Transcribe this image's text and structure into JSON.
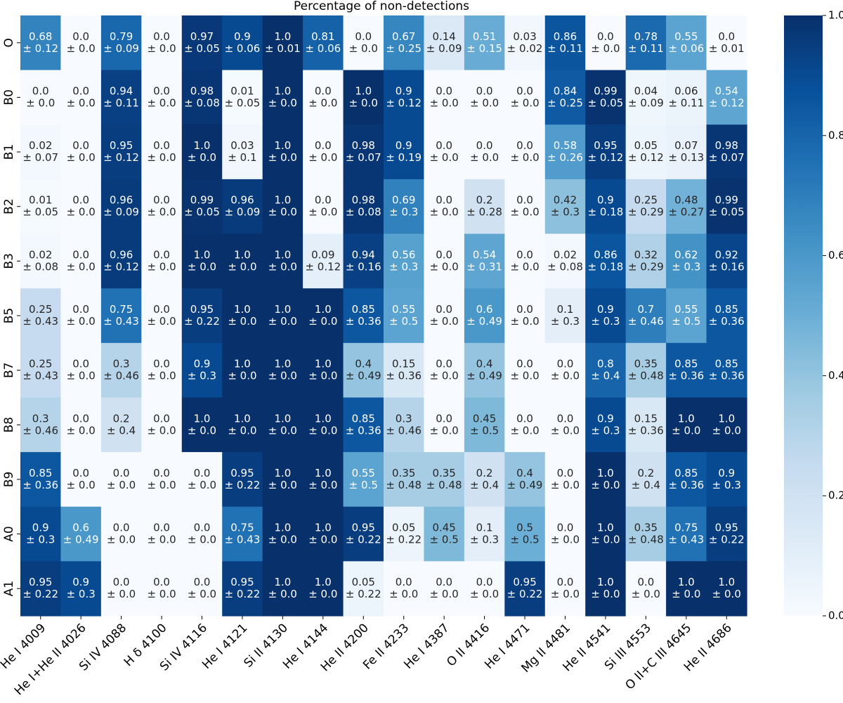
{
  "chart_data": {
    "type": "heatmap",
    "title": "Percentage of non-detections",
    "colormap": "Blues",
    "vmin": 0.0,
    "vmax": 1.0,
    "x_labels": [
      "He I 4009",
      "He I+He II 4026",
      "Si IV 4088",
      "H δ 4100",
      "Si IV 4116",
      "He I 4121",
      "Si II 4130",
      "He I 4144",
      "He II 4200",
      "Fe II 4233",
      "He I 4387",
      "O II 4416",
      "He I 4471",
      "Mg II 4481",
      "He II 4541",
      "Si III 4553",
      "O II+C III 4645",
      "He II 4686"
    ],
    "y_labels": [
      "O",
      "B0",
      "B1",
      "B2",
      "B3",
      "B5",
      "B7",
      "B8",
      "B9",
      "A0",
      "A1"
    ],
    "values": [
      [
        0.68,
        0.0,
        0.79,
        0.0,
        0.97,
        0.9,
        1.0,
        0.81,
        0.0,
        0.67,
        0.14,
        0.51,
        0.03,
        0.86,
        0.0,
        0.78,
        0.55,
        0.0
      ],
      [
        0.0,
        0.0,
        0.94,
        0.0,
        0.98,
        0.01,
        1.0,
        0.0,
        1.0,
        0.9,
        0.0,
        0.0,
        0.0,
        0.84,
        0.99,
        0.04,
        0.06,
        0.54
      ],
      [
        0.02,
        0.0,
        0.95,
        0.0,
        1.0,
        0.03,
        1.0,
        0.0,
        0.98,
        0.9,
        0.0,
        0.0,
        0.0,
        0.58,
        0.95,
        0.05,
        0.07,
        0.98
      ],
      [
        0.01,
        0.0,
        0.96,
        0.0,
        0.99,
        0.96,
        1.0,
        0.0,
        0.98,
        0.69,
        0.0,
        0.2,
        0.0,
        0.42,
        0.9,
        0.25,
        0.48,
        0.99
      ],
      [
        0.02,
        0.0,
        0.96,
        0.0,
        1.0,
        1.0,
        1.0,
        0.09,
        0.94,
        0.56,
        0.0,
        0.54,
        0.0,
        0.02,
        0.86,
        0.32,
        0.62,
        0.92
      ],
      [
        0.25,
        0.0,
        0.75,
        0.0,
        0.95,
        1.0,
        1.0,
        1.0,
        0.85,
        0.55,
        0.0,
        0.6,
        0.0,
        0.1,
        0.9,
        0.7,
        0.55,
        0.85
      ],
      [
        0.25,
        0.0,
        0.3,
        0.0,
        0.9,
        1.0,
        1.0,
        1.0,
        0.4,
        0.15,
        0.0,
        0.4,
        0.0,
        0.0,
        0.8,
        0.35,
        0.85,
        0.85
      ],
      [
        0.3,
        0.0,
        0.2,
        0.0,
        1.0,
        1.0,
        1.0,
        1.0,
        0.85,
        0.3,
        0.0,
        0.45,
        0.0,
        0.0,
        0.9,
        0.15,
        1.0,
        1.0
      ],
      [
        0.85,
        0.0,
        0.0,
        0.0,
        0.0,
        0.95,
        1.0,
        1.0,
        0.55,
        0.35,
        0.35,
        0.2,
        0.4,
        0.0,
        1.0,
        0.2,
        0.85,
        0.9
      ],
      [
        0.9,
        0.6,
        0.0,
        0.0,
        0.0,
        0.75,
        1.0,
        1.0,
        0.95,
        0.05,
        0.45,
        0.1,
        0.5,
        0.0,
        1.0,
        0.35,
        0.75,
        0.95
      ],
      [
        0.95,
        0.9,
        0.0,
        0.0,
        0.0,
        0.95,
        1.0,
        1.0,
        0.05,
        0.0,
        0.0,
        0.0,
        0.95,
        0.0,
        1.0,
        0.0,
        1.0,
        1.0
      ]
    ],
    "errors": [
      [
        0.12,
        0.0,
        0.09,
        0.0,
        0.05,
        0.06,
        0.01,
        0.06,
        0.0,
        0.25,
        0.09,
        0.15,
        0.02,
        0.11,
        0.0,
        0.11,
        0.06,
        0.01
      ],
      [
        0.0,
        0.0,
        0.11,
        0.0,
        0.08,
        0.05,
        0.0,
        0.0,
        0.0,
        0.12,
        0.0,
        0.0,
        0.0,
        0.25,
        0.05,
        0.09,
        0.11,
        0.12
      ],
      [
        0.07,
        0.0,
        0.12,
        0.0,
        0.0,
        0.1,
        0.0,
        0.0,
        0.07,
        0.19,
        0.0,
        0.0,
        0.0,
        0.26,
        0.12,
        0.12,
        0.13,
        0.07
      ],
      [
        0.05,
        0.0,
        0.09,
        0.0,
        0.05,
        0.09,
        0.0,
        0.0,
        0.08,
        0.3,
        0.0,
        0.28,
        0.0,
        0.3,
        0.18,
        0.29,
        0.27,
        0.05
      ],
      [
        0.08,
        0.0,
        0.12,
        0.0,
        0.0,
        0.0,
        0.0,
        0.12,
        0.16,
        0.3,
        0.0,
        0.31,
        0.0,
        0.08,
        0.18,
        0.29,
        0.3,
        0.16
      ],
      [
        0.43,
        0.0,
        0.43,
        0.0,
        0.22,
        0.0,
        0.0,
        0.0,
        0.36,
        0.5,
        0.0,
        0.49,
        0.0,
        0.3,
        0.3,
        0.46,
        0.5,
        0.36
      ],
      [
        0.43,
        0.0,
        0.46,
        0.0,
        0.3,
        0.0,
        0.0,
        0.0,
        0.49,
        0.36,
        0.0,
        0.49,
        0.0,
        0.0,
        0.4,
        0.48,
        0.36,
        0.36
      ],
      [
        0.46,
        0.0,
        0.4,
        0.0,
        0.0,
        0.0,
        0.0,
        0.0,
        0.36,
        0.46,
        0.0,
        0.5,
        0.0,
        0.0,
        0.3,
        0.36,
        0.0,
        0.0
      ],
      [
        0.36,
        0.0,
        0.0,
        0.0,
        0.0,
        0.22,
        0.0,
        0.0,
        0.5,
        0.48,
        0.48,
        0.4,
        0.49,
        0.0,
        0.0,
        0.4,
        0.36,
        0.3
      ],
      [
        0.3,
        0.49,
        0.0,
        0.0,
        0.0,
        0.43,
        0.0,
        0.0,
        0.22,
        0.22,
        0.5,
        0.3,
        0.5,
        0.0,
        0.0,
        0.48,
        0.43,
        0.22
      ],
      [
        0.22,
        0.3,
        0.0,
        0.0,
        0.0,
        0.22,
        0.0,
        0.0,
        0.22,
        0.0,
        0.0,
        0.0,
        0.22,
        0.0,
        0.0,
        0.0,
        0.0,
        0.0
      ]
    ],
    "colorbar": {
      "ticks": [
        0.0,
        0.2,
        0.4,
        0.6,
        0.8,
        1.0
      ],
      "tick_labels": [
        "0.0",
        "0.2",
        "0.4",
        "0.6",
        "0.8",
        "1.0"
      ]
    }
  }
}
